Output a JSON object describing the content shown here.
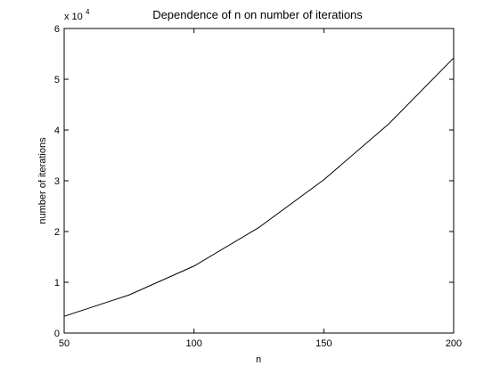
{
  "chart_data": {
    "type": "line",
    "title": "Dependence of n on number of iterations",
    "xlabel": "n",
    "ylabel": "number of iterations",
    "xlim": [
      50,
      200
    ],
    "ylim": [
      0,
      60000
    ],
    "x_ticks": [
      50,
      100,
      150,
      200
    ],
    "x_tick_labels": [
      "50",
      "100",
      "150",
      "200"
    ],
    "y_ticks": [
      0,
      10000,
      20000,
      30000,
      40000,
      50000,
      60000
    ],
    "y_tick_labels": [
      "0",
      "1",
      "2",
      "3",
      "4",
      "5",
      "6"
    ],
    "y_multiplier_base": "x 10",
    "y_multiplier_exponent": "4",
    "grid": false,
    "series": [
      {
        "x": [
          50,
          75,
          100,
          125,
          150,
          175,
          200
        ],
        "y": [
          3300,
          7500,
          13200,
          20800,
          30200,
          41200,
          54200
        ],
        "color": "#000000"
      }
    ]
  }
}
